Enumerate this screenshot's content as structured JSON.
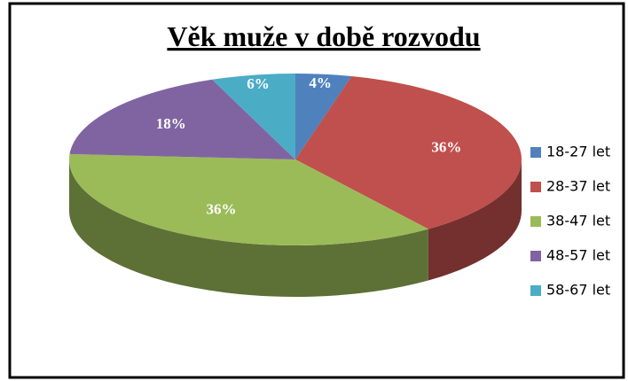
{
  "chart_data": {
    "type": "pie",
    "title": "Věk muže v době rozvodu",
    "categories": [
      "18-27 let",
      "28-37 let",
      "38-47 let",
      "48-57 let",
      "58-67 let"
    ],
    "values": [
      4,
      36,
      36,
      18,
      6
    ],
    "value_labels": [
      "4%",
      "36%",
      "36%",
      "18%",
      "6%"
    ],
    "colors": [
      "#4f81bd",
      "#c0504d",
      "#9bbb59",
      "#8064a2",
      "#4bacc6"
    ],
    "legend": "right"
  }
}
